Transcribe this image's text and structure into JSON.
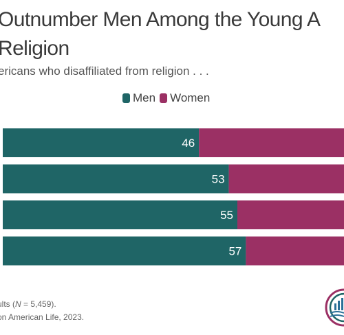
{
  "title_line1": "Outnumber Men Among the Young A",
  "title_line2": "Religion",
  "subtitle": "ericans who disaffiliated from religion . . .",
  "footnote_line1_prefix": "ults (",
  "footnote_line1_n": "N",
  "footnote_line1_suffix": " = 5,459).",
  "footnote_line2": "on American Life, 2023.",
  "colors": {
    "men": "#1f6566",
    "women": "#9b3064"
  },
  "chart_data": {
    "type": "bar",
    "orientation": "horizontal",
    "stacked": true,
    "legend": [
      "Men",
      "Women"
    ],
    "series": [
      {
        "name": "Men",
        "values": [
          46,
          53,
          55,
          57
        ]
      }
    ],
    "xlim": [
      0,
      100
    ],
    "legend_placement": "top-center"
  }
}
